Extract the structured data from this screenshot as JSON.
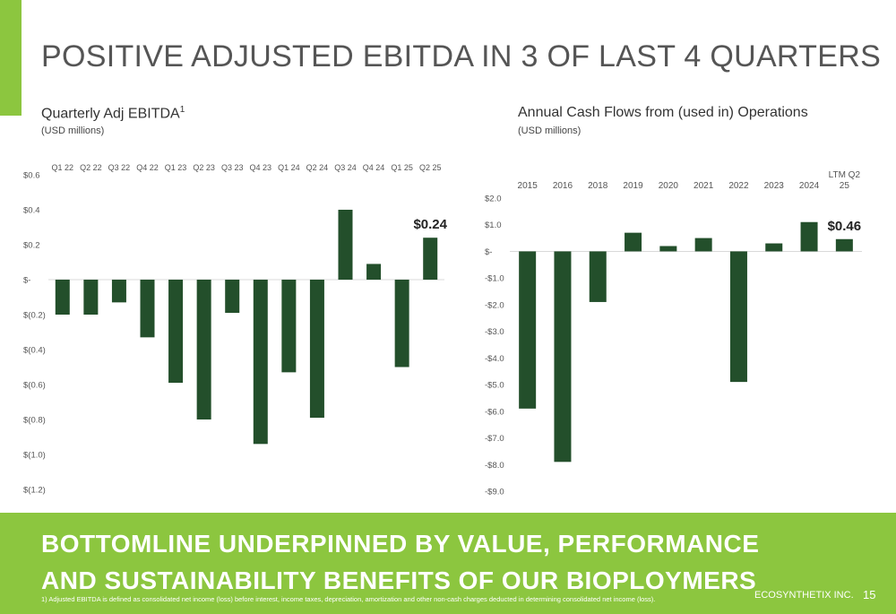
{
  "slide": {
    "title": "POSITIVE ADJUSTED EBITDA IN 3 OF LAST 4 QUARTERS",
    "banner_headline": "BOTTOMLINE UNDERPINNED BY VALUE, PERFORMANCE AND SUSTAINABILITY BENEFITS OF OUR BIOPLOYMERS",
    "footnote": "1) Adjusted EBITDA is defined as consolidated net income (loss) before interest, income taxes, depreciation, amortization and other non-cash charges deducted in determining consolidated net income (loss).",
    "company": "ECOSYNTHETIX INC.",
    "page_number": "15",
    "colors": {
      "accent_green": "#8cc63f",
      "bar_green": "#234f2b",
      "text_gray": "#555555"
    }
  },
  "chart_data": [
    {
      "type": "bar",
      "title": "Quarterly Adj EBITDA",
      "title_superscript": "1",
      "subtitle": "(USD millions)",
      "categories": [
        "Q1 22",
        "Q2 22",
        "Q3 22",
        "Q4 22",
        "Q1 23",
        "Q2 23",
        "Q3 23",
        "Q4 23",
        "Q1 24",
        "Q2 24",
        "Q3 24",
        "Q4 24",
        "Q1 25",
        "Q2 25"
      ],
      "values": [
        -0.2,
        -0.2,
        -0.13,
        -0.33,
        -0.59,
        -0.8,
        -0.19,
        -0.94,
        -0.53,
        -0.79,
        0.4,
        0.09,
        -0.5,
        0.24
      ],
      "ylim": [
        -1.2,
        0.6
      ],
      "ytick_values": [
        0.6,
        0.4,
        0.2,
        0,
        -0.2,
        -0.4,
        -0.6,
        -0.8,
        -1.0,
        -1.2
      ],
      "ytick_labels": [
        "$0.6",
        "$0.4",
        "$0.2",
        "$-",
        "$(0.2)",
        "$(0.4)",
        "$(0.6)",
        "$(0.8)",
        "$(1.0)",
        "$(1.2)"
      ],
      "category_axis_position": "top",
      "grid": false,
      "callout": {
        "category": "Q2 25",
        "label": "$0.24"
      }
    },
    {
      "type": "bar",
      "title": "Annual Cash Flows from (used in) Operations",
      "subtitle": "(USD millions)",
      "categories": [
        "2015",
        "2016",
        "2018",
        "2019",
        "2020",
        "2021",
        "2022",
        "2023",
        "2024",
        "LTM Q2 25"
      ],
      "category_label_lines": [
        [
          "2015"
        ],
        [
          "2016"
        ],
        [
          "2018"
        ],
        [
          "2019"
        ],
        [
          "2020"
        ],
        [
          "2021"
        ],
        [
          "2022"
        ],
        [
          "2023"
        ],
        [
          "2024"
        ],
        [
          "LTM Q2",
          "25"
        ]
      ],
      "values": [
        -5.9,
        -7.9,
        -1.9,
        0.7,
        0.2,
        0.5,
        -4.9,
        0.3,
        1.1,
        0.46
      ],
      "ylim": [
        -9.0,
        2.0
      ],
      "ytick_values": [
        2,
        1,
        0,
        -1,
        -2,
        -3,
        -4,
        -5,
        -6,
        -7,
        -8,
        -9
      ],
      "ytick_labels": [
        "$2.0",
        "$1.0",
        "$-",
        "-$1.0",
        "-$2.0",
        "-$3.0",
        "-$4.0",
        "-$5.0",
        "-$6.0",
        "-$7.0",
        "-$8.0",
        "-$9.0"
      ],
      "category_axis_position": "top",
      "grid": false,
      "callout": {
        "category": "LTM Q2 25",
        "label": "$0.46"
      }
    }
  ]
}
